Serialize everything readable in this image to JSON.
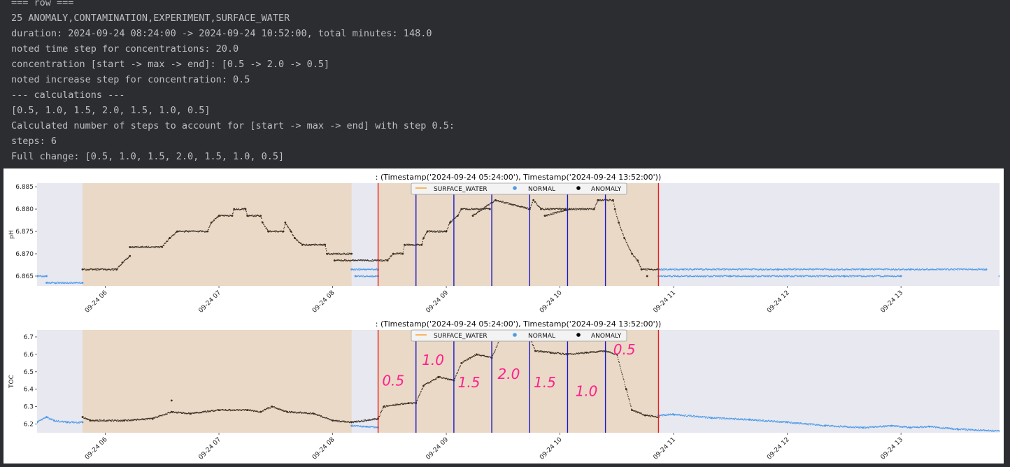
{
  "console": {
    "lines": [
      "=== row ===",
      "25 ANOMALY,CONTAMINATION,EXPERIMENT,SURFACE_WATER",
      "duration: 2024-09-24 08:24:00 -> 2024-09-24 10:52:00, total minutes: 148.0",
      "noted time step for concentrations: 20.0",
      "concentration [start -> max -> end]: [0.5 -> 2.0 -> 0.5]",
      "noted increase step for concentration: 0.5",
      "--- calculations ---",
      "[0.5, 1.0, 1.5, 2.0, 1.5, 1.0, 0.5]",
      "Calculated number of steps to account for [start -> max -> end] with step 0.5:",
      "steps: 6",
      "Full change: [0.5, 1.0, 1.5, 2.0, 1.5, 1.0, 0.5]"
    ]
  },
  "colors": {
    "normal": "#4c9be8",
    "anomaly": "#3a2f24",
    "surface_water": "#ff8c00",
    "event_shade": "#ead9c6",
    "plot_bg": "#e8e8f0",
    "boundary_line": "#e8201e",
    "step_line": "#1a18c8",
    "handwriting": "#ff1f8e"
  },
  "chart_data": [
    {
      "type": "scatter",
      "title": ": (Timestamp('2024-09-24 05:24:00'), Timestamp('2024-09-24 13:52:00'))",
      "ylabel": "pH",
      "xlabel": "",
      "xlim": [
        "2024-09-24 05:24",
        "2024-09-24 13:52"
      ],
      "ylim": [
        6.8628,
        6.8858
      ],
      "yticks": [
        6.865,
        6.87,
        6.875,
        6.88,
        6.885
      ],
      "ytick_labels": [
        "6.865",
        "6.870",
        "6.875",
        "6.880",
        "6.885"
      ],
      "xticks": [
        "2024-09-24 06:00",
        "2024-09-24 07:00",
        "2024-09-24 08:00",
        "2024-09-24 09:00",
        "2024-09-24 10:00",
        "2024-09-24 11:00",
        "2024-09-24 12:00",
        "2024-09-24 13:00"
      ],
      "xtick_labels": [
        "09-24 06",
        "09-24 07",
        "09-24 08",
        "09-24 09",
        "09-24 10",
        "09-24 11",
        "09-24 12",
        "09-24 13"
      ],
      "legend": {
        "placement": "top-center",
        "entries": [
          "SURFACE_WATER",
          "NORMAL",
          "ANOMALY"
        ]
      },
      "shaded_spans": [
        [
          "2024-09-24 05:48",
          "2024-09-24 08:10"
        ],
        [
          "2024-09-24 08:24",
          "2024-09-24 10:52"
        ]
      ],
      "boundary_lines": [
        "2024-09-24 08:24",
        "2024-09-24 10:52"
      ],
      "step_lines": [
        "2024-09-24 08:44",
        "2024-09-24 09:04",
        "2024-09-24 09:24",
        "2024-09-24 09:44",
        "2024-09-24 10:04",
        "2024-09-24 10:24"
      ],
      "series": [
        {
          "name": "NORMAL",
          "points": [
            [
              "2024-09-24 05:24",
              6.865
            ],
            [
              "2024-09-24 05:29",
              6.865
            ],
            [
              "2024-09-24 05:29",
              6.8635
            ],
            [
              "2024-09-24 05:48",
              6.8635
            ],
            [
              "2024-09-24 08:10",
              6.8665
            ],
            [
              "2024-09-24 08:24",
              6.8665
            ],
            [
              "2024-09-24 08:12",
              6.865
            ],
            [
              "2024-09-24 08:24",
              6.865
            ],
            [
              "2024-09-24 10:52",
              6.865
            ],
            [
              "2024-09-24 11:30",
              6.865
            ],
            [
              "2024-09-24 12:00",
              6.865
            ],
            [
              "2024-09-24 12:30",
              6.865
            ],
            [
              "2024-09-24 13:00",
              6.865
            ],
            [
              "2024-09-24 13:52",
              6.865
            ],
            [
              "2024-09-24 10:52",
              6.8665
            ],
            [
              "2024-09-24 11:05",
              6.8665
            ],
            [
              "2024-09-24 11:55",
              6.8665
            ],
            [
              "2024-09-24 12:40",
              6.8665
            ],
            [
              "2024-09-24 13:05",
              6.8665
            ],
            [
              "2024-09-24 13:45",
              6.8665
            ]
          ]
        },
        {
          "name": "ANOMALY",
          "points": [
            [
              "2024-09-24 05:48",
              6.8665
            ],
            [
              "2024-09-24 06:06",
              6.8665
            ],
            [
              "2024-09-24 06:09",
              6.868
            ],
            [
              "2024-09-24 06:13",
              6.8695
            ],
            [
              "2024-09-24 06:13",
              6.8715
            ],
            [
              "2024-09-24 06:30",
              6.8715
            ],
            [
              "2024-09-24 06:34",
              6.8735
            ],
            [
              "2024-09-24 06:38",
              6.875
            ],
            [
              "2024-09-24 06:54",
              6.875
            ],
            [
              "2024-09-24 06:56",
              6.877
            ],
            [
              "2024-09-24 07:00",
              6.8785
            ],
            [
              "2024-09-24 07:07",
              6.8785
            ],
            [
              "2024-09-24 07:08",
              6.88
            ],
            [
              "2024-09-24 07:14",
              6.88
            ],
            [
              "2024-09-24 07:15",
              6.8785
            ],
            [
              "2024-09-24 07:22",
              6.8785
            ],
            [
              "2024-09-24 07:23",
              6.877
            ],
            [
              "2024-09-24 07:26",
              6.875
            ],
            [
              "2024-09-24 07:34",
              6.875
            ],
            [
              "2024-09-24 07:35",
              6.877
            ],
            [
              "2024-09-24 07:38",
              6.875
            ],
            [
              "2024-09-24 07:40",
              6.8735
            ],
            [
              "2024-09-24 07:44",
              6.872
            ],
            [
              "2024-09-24 07:56",
              6.872
            ],
            [
              "2024-09-24 07:57",
              6.87
            ],
            [
              "2024-09-24 08:10",
              6.87
            ],
            [
              "2024-09-24 08:01",
              6.8685
            ],
            [
              "2024-09-24 08:29",
              6.8685
            ],
            [
              "2024-09-24 08:32",
              6.87
            ],
            [
              "2024-09-24 08:37",
              6.87
            ],
            [
              "2024-09-24 08:38",
              6.872
            ],
            [
              "2024-09-24 08:47",
              6.872
            ],
            [
              "2024-09-24 08:48",
              6.8735
            ],
            [
              "2024-09-24 08:50",
              6.875
            ],
            [
              "2024-09-24 09:00",
              6.875
            ],
            [
              "2024-09-24 09:02",
              6.877
            ],
            [
              "2024-09-24 09:06",
              6.8785
            ],
            [
              "2024-09-24 09:08",
              6.88
            ],
            [
              "2024-09-24 09:23",
              6.88
            ],
            [
              "2024-09-24 09:14",
              6.8785
            ],
            [
              "2024-09-24 09:26",
              6.882
            ],
            [
              "2024-09-24 09:44",
              6.88
            ],
            [
              "2024-09-24 09:46",
              6.882
            ],
            [
              "2024-09-24 09:50",
              6.88
            ],
            [
              "2024-09-24 10:03",
              6.88
            ],
            [
              "2024-09-24 09:52",
              6.8785
            ],
            [
              "2024-09-24 10:05",
              6.88
            ],
            [
              "2024-09-24 10:18",
              6.88
            ],
            [
              "2024-09-24 10:20",
              6.882
            ],
            [
              "2024-09-24 10:28",
              6.882
            ],
            [
              "2024-09-24 10:29",
              6.88
            ],
            [
              "2024-09-24 10:31",
              6.877
            ],
            [
              "2024-09-24 10:34",
              6.8735
            ],
            [
              "2024-09-24 10:38",
              6.87
            ],
            [
              "2024-09-24 10:41",
              6.8685
            ],
            [
              "2024-09-24 10:43",
              6.8665
            ],
            [
              "2024-09-24 10:52",
              6.8665
            ],
            [
              "2024-09-24 10:46",
              6.865
            ]
          ]
        }
      ]
    },
    {
      "type": "scatter",
      "title": ": (Timestamp('2024-09-24 05:24:00'), Timestamp('2024-09-24 13:52:00'))",
      "ylabel": "TOC",
      "xlabel": "",
      "xlim": [
        "2024-09-24 05:24",
        "2024-09-24 13:52"
      ],
      "ylim": [
        6.15,
        6.74
      ],
      "yticks": [
        6.2,
        6.3,
        6.4,
        6.5,
        6.6,
        6.7
      ],
      "ytick_labels": [
        "6.2",
        "6.3",
        "6.4",
        "6.5",
        "6.6",
        "6.7"
      ],
      "xticks": [
        "2024-09-24 06:00",
        "2024-09-24 07:00",
        "2024-09-24 08:00",
        "2024-09-24 09:00",
        "2024-09-24 10:00",
        "2024-09-24 11:00",
        "2024-09-24 12:00",
        "2024-09-24 13:00"
      ],
      "xtick_labels": [
        "09-24 06",
        "09-24 07",
        "09-24 08",
        "09-24 09",
        "09-24 10",
        "09-24 11",
        "09-24 12",
        "09-24 13"
      ],
      "legend": {
        "placement": "top-center",
        "entries": [
          "SURFACE_WATER",
          "NORMAL",
          "ANOMALY"
        ]
      },
      "shaded_spans": [
        [
          "2024-09-24 05:48",
          "2024-09-24 08:10"
        ],
        [
          "2024-09-24 08:24",
          "2024-09-24 10:52"
        ]
      ],
      "boundary_lines": [
        "2024-09-24 08:24",
        "2024-09-24 10:52"
      ],
      "step_lines": [
        "2024-09-24 08:44",
        "2024-09-24 09:04",
        "2024-09-24 09:24",
        "2024-09-24 09:44",
        "2024-09-24 10:04",
        "2024-09-24 10:24"
      ],
      "annotations": [
        {
          "text": "0.5",
          "x": "2024-09-24 08:32",
          "y": 6.42
        },
        {
          "text": "1.0",
          "x": "2024-09-24 08:53",
          "y": 6.54
        },
        {
          "text": "1.5",
          "x": "2024-09-24 09:12",
          "y": 6.41
        },
        {
          "text": "2.0",
          "x": "2024-09-24 09:33",
          "y": 6.46
        },
        {
          "text": "1.5",
          "x": "2024-09-24 09:52",
          "y": 6.41
        },
        {
          "text": "1.0",
          "x": "2024-09-24 10:14",
          "y": 6.36
        },
        {
          "text": "0.5",
          "x": "2024-09-24 10:34",
          "y": 6.6
        }
      ],
      "series": [
        {
          "name": "NORMAL",
          "points": [
            [
              "2024-09-24 05:24",
              6.21
            ],
            [
              "2024-09-24 05:29",
              6.24
            ],
            [
              "2024-09-24 05:33",
              6.22
            ],
            [
              "2024-09-24 05:40",
              6.21
            ],
            [
              "2024-09-24 05:48",
              6.21
            ],
            [
              "2024-09-24 08:10",
              6.19
            ],
            [
              "2024-09-24 08:18",
              6.185
            ],
            [
              "2024-09-24 08:24",
              6.18
            ],
            [
              "2024-09-24 10:52",
              6.25
            ],
            [
              "2024-09-24 11:00",
              6.255
            ],
            [
              "2024-09-24 11:20",
              6.235
            ],
            [
              "2024-09-24 11:40",
              6.225
            ],
            [
              "2024-09-24 12:00",
              6.21
            ],
            [
              "2024-09-24 12:20",
              6.19
            ],
            [
              "2024-09-24 12:40",
              6.18
            ],
            [
              "2024-09-24 12:55",
              6.19
            ],
            [
              "2024-09-24 13:05",
              6.18
            ],
            [
              "2024-09-24 13:15",
              6.185
            ],
            [
              "2024-09-24 13:30",
              6.17
            ],
            [
              "2024-09-24 13:52",
              6.16
            ]
          ]
        },
        {
          "name": "ANOMALY",
          "points": [
            [
              "2024-09-24 05:48",
              6.24
            ],
            [
              "2024-09-24 05:52",
              6.22
            ],
            [
              "2024-09-24 06:10",
              6.22
            ],
            [
              "2024-09-24 06:25",
              6.23
            ],
            [
              "2024-09-24 06:35",
              6.27
            ],
            [
              "2024-09-24 06:45",
              6.26
            ],
            [
              "2024-09-24 07:00",
              6.28
            ],
            [
              "2024-09-24 07:15",
              6.28
            ],
            [
              "2024-09-24 07:22",
              6.27
            ],
            [
              "2024-09-24 07:28",
              6.3
            ],
            [
              "2024-09-24 07:36",
              6.27
            ],
            [
              "2024-09-24 07:50",
              6.26
            ],
            [
              "2024-09-24 08:00",
              6.22
            ],
            [
              "2024-09-24 08:10",
              6.21
            ],
            [
              "2024-09-24 08:24",
              6.23
            ],
            [
              "2024-09-24 08:27",
              6.3
            ],
            [
              "2024-09-24 08:40",
              6.32
            ],
            [
              "2024-09-24 08:44",
              6.32
            ],
            [
              "2024-09-24 08:48",
              6.42
            ],
            [
              "2024-09-24 08:56",
              6.47
            ],
            [
              "2024-09-24 09:04",
              6.45
            ],
            [
              "2024-09-24 09:08",
              6.55
            ],
            [
              "2024-09-24 09:16",
              6.6
            ],
            [
              "2024-09-24 09:24",
              6.58
            ],
            [
              "2024-09-24 09:28",
              6.68
            ],
            [
              "2024-09-24 09:33",
              6.74
            ],
            [
              "2024-09-24 09:44",
              6.7
            ],
            [
              "2024-09-24 09:47",
              6.62
            ],
            [
              "2024-09-24 09:55",
              6.61
            ],
            [
              "2024-09-24 10:04",
              6.6
            ],
            [
              "2024-09-24 10:14",
              6.61
            ],
            [
              "2024-09-24 10:24",
              6.62
            ],
            [
              "2024-09-24 10:30",
              6.6
            ],
            [
              "2024-09-24 10:35",
              6.4
            ],
            [
              "2024-09-24 10:38",
              6.28
            ],
            [
              "2024-09-24 10:45",
              6.25
            ],
            [
              "2024-09-24 10:52",
              6.24
            ],
            [
              "2024-09-24 06:35",
              6.335
            ]
          ]
        }
      ]
    }
  ]
}
